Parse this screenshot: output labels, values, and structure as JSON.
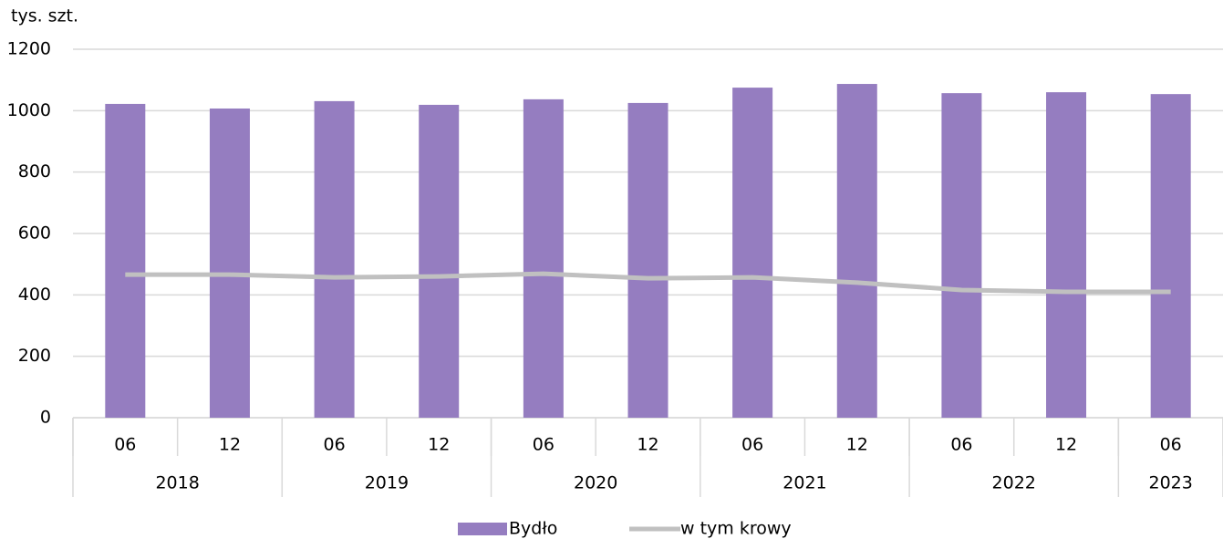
{
  "chart_data": {
    "type": "bar_line",
    "y_axis_label": "tys. szt.",
    "categories": [
      "06",
      "12",
      "06",
      "12",
      "06",
      "12",
      "06",
      "12",
      "06",
      "12",
      "06"
    ],
    "x_groups": [
      {
        "label": "2018",
        "count": 2
      },
      {
        "label": "2019",
        "count": 2
      },
      {
        "label": "2020",
        "count": 2
      },
      {
        "label": "2021",
        "count": 2
      },
      {
        "label": "2022",
        "count": 2
      },
      {
        "label": "2023",
        "count": 1
      }
    ],
    "series": [
      {
        "name": "Bydło",
        "type": "bar",
        "color": "#957dc0",
        "values": [
          1022,
          1007,
          1031,
          1019,
          1037,
          1025,
          1075,
          1087,
          1057,
          1060,
          1054
        ]
      },
      {
        "name": "w tym krowy",
        "type": "line",
        "color": "#c0c0c0",
        "values": [
          466,
          466,
          457,
          460,
          469,
          454,
          457,
          440,
          416,
          410,
          410
        ]
      }
    ],
    "ylim": [
      0,
      1200
    ],
    "yticks": [
      0,
      200,
      400,
      600,
      800,
      1000,
      1200
    ],
    "grid": true,
    "legend": "bottom"
  }
}
